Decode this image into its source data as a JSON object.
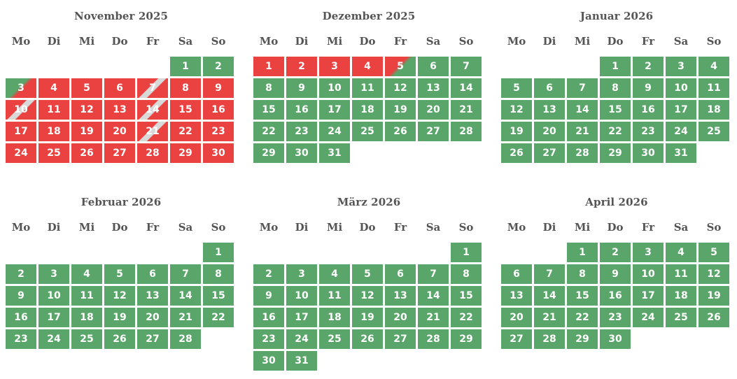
{
  "weekdays": [
    "Mo",
    "Di",
    "Mi",
    "Do",
    "Fr",
    "Sa",
    "So"
  ],
  "colors": {
    "free": "#5aa56a",
    "booked": "#ea4141",
    "change_stripe": "#d9d9d9"
  },
  "months": [
    {
      "title": "November 2025",
      "first_weekday": 5,
      "days": 30,
      "status": {
        "3": "arrival",
        "4": "booked",
        "5": "booked",
        "6": "booked",
        "7": "change",
        "8": "booked",
        "9": "booked",
        "10": "change",
        "11": "booked",
        "12": "booked",
        "13": "booked",
        "14": "change",
        "15": "booked",
        "16": "booked",
        "17": "booked",
        "18": "booked",
        "19": "booked",
        "20": "booked",
        "21": "change",
        "22": "booked",
        "23": "booked",
        "24": "booked",
        "25": "booked",
        "26": "booked",
        "27": "booked",
        "28": "booked",
        "29": "booked",
        "30": "booked"
      }
    },
    {
      "title": "Dezember 2025",
      "first_weekday": 0,
      "days": 31,
      "status": {
        "1": "booked",
        "2": "booked",
        "3": "booked",
        "4": "booked",
        "5": "departure"
      }
    },
    {
      "title": "Januar 2026",
      "first_weekday": 3,
      "days": 31,
      "status": {}
    },
    {
      "title": "Februar 2026",
      "first_weekday": 6,
      "days": 28,
      "status": {}
    },
    {
      "title": "März 2026",
      "first_weekday": 6,
      "days": 31,
      "status": {}
    },
    {
      "title": "April 2026",
      "first_weekday": 2,
      "days": 30,
      "status": {}
    }
  ]
}
